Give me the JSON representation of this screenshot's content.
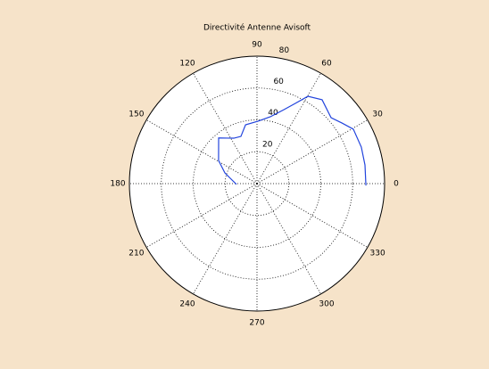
{
  "chart_data": {
    "type": "polar",
    "title": "Directivité Antenne Avisoft",
    "x": [
      -1,
      9.8,
      19.3,
      29.5,
      35.6,
      41.7,
      52.2,
      59.8,
      64.5,
      70,
      78.7,
      89,
      101,
      108.8,
      117,
      130,
      149,
      161.6,
      168.7,
      182
    ],
    "values": [
      68.3,
      68.7,
      69.3,
      69.4,
      65.4,
      62.2,
      66.6,
      63.4,
      55.8,
      49.4,
      42.8,
      39.2,
      37.6,
      31.3,
      32,
      37.4,
      28.1,
      21.2,
      17.1,
      12.9
    ],
    "color": "#2244dd",
    "rlim": [
      0,
      80
    ],
    "rticks": [
      20,
      40,
      60,
      80
    ],
    "thetaticks": [
      0,
      30,
      60,
      90,
      120,
      150,
      180,
      210,
      240,
      270,
      300,
      330
    ],
    "grid": true
  }
}
